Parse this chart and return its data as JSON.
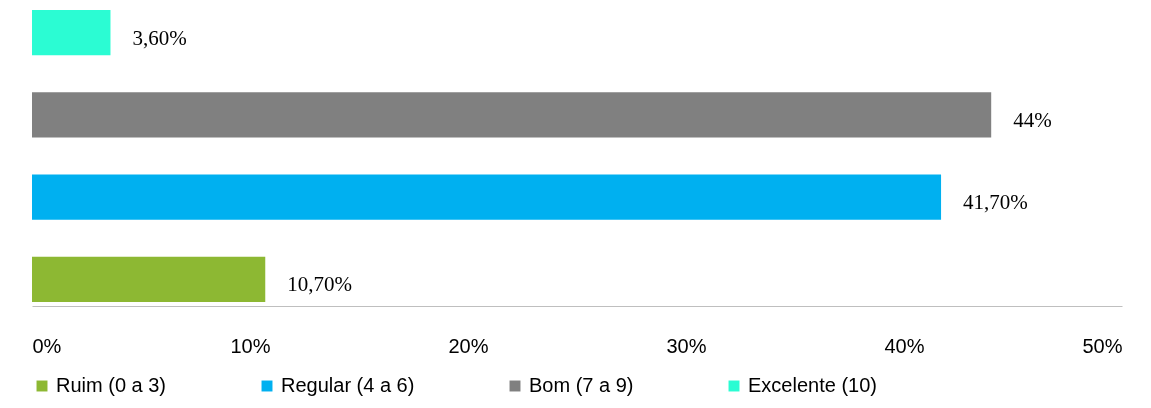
{
  "chart_data": {
    "type": "bar",
    "orientation": "horizontal",
    "stacked": true,
    "categories": [
      null,
      null,
      null,
      null
    ],
    "series": [
      {
        "name": "Ruim (0 a 3)",
        "color": "#8db833",
        "values": [
          null,
          null,
          null,
          10.7
        ],
        "value_labels": [
          null,
          null,
          null,
          "10,70%"
        ]
      },
      {
        "name": "Regular (4 a 6)",
        "color": "#00b0f0",
        "values": [
          null,
          null,
          41.7,
          null
        ],
        "value_labels": [
          null,
          null,
          "41,70%",
          null
        ]
      },
      {
        "name": "Bom (7 a 9)",
        "color": "#808080",
        "values": [
          null,
          44,
          null,
          null
        ],
        "value_labels": [
          null,
          "44%",
          null,
          null
        ]
      },
      {
        "name": "Excelente (10)",
        "color": "#2bfcd3",
        "values": [
          3.6,
          null,
          null,
          null
        ],
        "value_labels": [
          "3,60%",
          null,
          null,
          null
        ]
      }
    ],
    "xlim": [
      0,
      50
    ],
    "xticks": [
      {
        "value": 0,
        "label": "0%"
      },
      {
        "value": 10,
        "label": "10%"
      },
      {
        "value": 20,
        "label": "20%"
      },
      {
        "value": 30,
        "label": "30%"
      },
      {
        "value": 40,
        "label": "40%"
      },
      {
        "value": 50,
        "label": "50%"
      }
    ],
    "grid": false,
    "legend": "bottom"
  }
}
